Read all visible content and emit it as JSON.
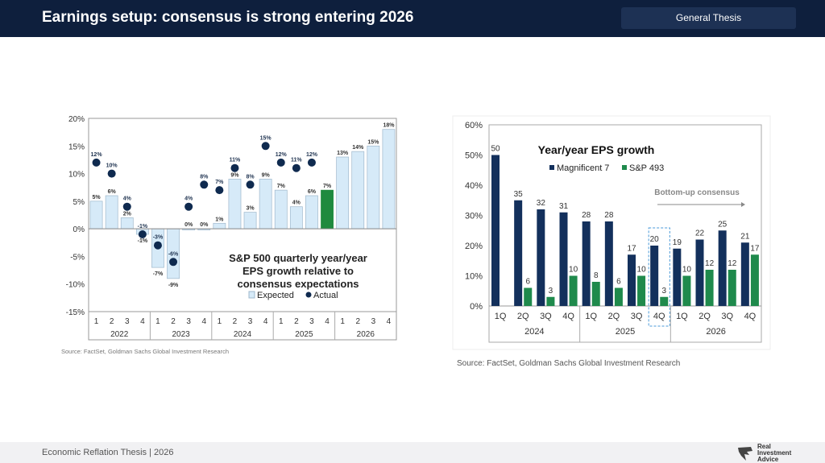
{
  "header": {
    "title": "Earnings setup: consensus is strong entering 2026",
    "badge": "General Thesis"
  },
  "footer": {
    "text": "Economic Reflation Thesis | 2026",
    "logo_text": [
      "Real",
      "Investment",
      "Advice"
    ]
  },
  "chart_data": [
    {
      "type": "bar",
      "title": "S&P 500 quarterly year/year EPS growth relative to consensus expectations",
      "title_lines": [
        "S&P 500 quarterly  year/year",
        "EPS growth relative to",
        "consensus expectations"
      ],
      "ylim": [
        -15,
        20
      ],
      "yticks": [
        "20%",
        "15%",
        "10%",
        "5%",
        "0%",
        "-5%",
        "-10%",
        "-15%"
      ],
      "ytick_values": [
        20,
        15,
        10,
        5,
        0,
        -5,
        -10,
        -15
      ],
      "quarters": [
        "1",
        "2",
        "3",
        "4",
        "1",
        "2",
        "3",
        "4",
        "1",
        "2",
        "3",
        "4",
        "1",
        "2",
        "3",
        "4",
        "1",
        "2",
        "3",
        "4"
      ],
      "years": [
        "2022",
        "2023",
        "2024",
        "2025",
        "2026"
      ],
      "legend": {
        "expected": "Expected",
        "actual": "Actual",
        "placement": "bottom-right"
      },
      "series": [
        {
          "name": "Expected",
          "kind": "bar",
          "values": [
            5,
            6,
            2,
            -1,
            -7,
            -9,
            0,
            0,
            1,
            9,
            3,
            9,
            7,
            4,
            6,
            7,
            13,
            14,
            15,
            18
          ],
          "labels": [
            "5%",
            "6%",
            "2%",
            "-1%",
            "-7%",
            "-9%",
            "0%",
            "0%",
            "1%",
            "9%",
            "3%",
            "9%",
            "7%",
            "4%",
            "6%",
            "7%",
            "13%",
            "14%",
            "15%",
            "18%"
          ]
        },
        {
          "name": "Actual",
          "kind": "dot",
          "values": [
            12,
            10,
            4,
            -1,
            -3,
            -6,
            4,
            8,
            7,
            11,
            8,
            15,
            12,
            11,
            12,
            null,
            null,
            null,
            null,
            null
          ],
          "labels": [
            "12%",
            "10%",
            "4%",
            "-1%",
            "-3%",
            "-6%",
            "4%",
            "8%",
            "7%",
            "11%",
            "8%",
            "15%",
            "12%",
            "11%",
            "12%",
            null,
            null,
            null,
            null,
            null
          ]
        }
      ],
      "highlight_index": 15,
      "colors": {
        "expected": "#d6eaf8",
        "expected_border": "#9fb8cc",
        "actual": "#0f2a4f",
        "highlight": "#1f8a3e"
      },
      "source": "Source: FactSet, Goldman Sachs Global Investment Research"
    },
    {
      "type": "bar",
      "title": "Year/year EPS growth",
      "ylim": [
        0,
        60
      ],
      "yticks": [
        "60%",
        "50%",
        "40%",
        "30%",
        "20%",
        "10%",
        "0%"
      ],
      "ytick_values": [
        60,
        50,
        40,
        30,
        20,
        10,
        0
      ],
      "quarters": [
        "1Q",
        "2Q",
        "3Q",
        "4Q",
        "1Q",
        "2Q",
        "3Q",
        "4Q",
        "1Q",
        "2Q",
        "3Q",
        "4Q"
      ],
      "years": [
        "2024",
        "2025",
        "2026"
      ],
      "annotation": "Bottom-up consensus",
      "highlight_index": 7,
      "series": [
        {
          "name": "Magnificent 7",
          "values": [
            50,
            35,
            32,
            31,
            28,
            28,
            17,
            20,
            19,
            22,
            25,
            21
          ],
          "color": "#13305c"
        },
        {
          "name": "S&P 493",
          "values": [
            null,
            6,
            3,
            10,
            8,
            6,
            10,
            3,
            10,
            12,
            12,
            17
          ],
          "color": "#1f8a4c"
        }
      ],
      "legend_placement": "top",
      "source": "Source: FactSet, Goldman Sachs Global Investment Research"
    }
  ]
}
